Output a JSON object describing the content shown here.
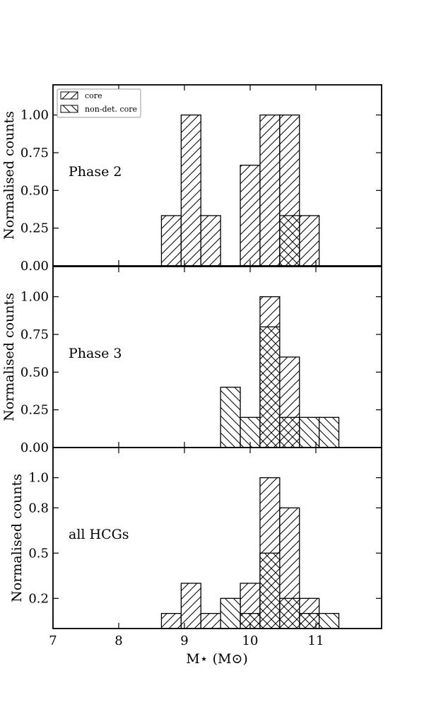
{
  "chart_data": {
    "type": "bar",
    "xlabel": "M⋆ (M⊙)",
    "xlim": [
      7,
      12
    ],
    "xticks": [
      "7",
      "8",
      "9",
      "10",
      "11"
    ],
    "bin_width": 0.3,
    "legend": {
      "placement": "top-left",
      "entries": [
        {
          "label": "core",
          "hatch": "diagonal-forward"
        },
        {
          "label": "non-det. core",
          "hatch": "diagonal-back"
        }
      ]
    },
    "panels": [
      {
        "label": "Phase 2",
        "ylabel": "Normalised counts",
        "ylim": [
          0,
          1.2
        ],
        "yticks": [
          {
            "value": 0.0,
            "label": "0.00"
          },
          {
            "value": 0.25,
            "label": "0.25"
          },
          {
            "value": 0.5,
            "label": "0.50"
          },
          {
            "value": 0.75,
            "label": "0.75"
          },
          {
            "value": 1.0,
            "label": "1.00"
          }
        ],
        "series": [
          {
            "name": "core",
            "bins": [
              {
                "x": 8.65,
                "value": 0.333
              },
              {
                "x": 8.95,
                "value": 1.0
              },
              {
                "x": 9.25,
                "value": 0.333
              },
              {
                "x": 9.85,
                "value": 0.667
              },
              {
                "x": 10.15,
                "value": 1.0
              },
              {
                "x": 10.45,
                "value": 1.0
              },
              {
                "x": 10.75,
                "value": 0.333
              }
            ]
          },
          {
            "name": "non-det. core",
            "bins": [
              {
                "x": 10.45,
                "value": 0.333
              }
            ]
          }
        ]
      },
      {
        "label": "Phase 3",
        "ylabel": "Normalised counts",
        "ylim": [
          0,
          1.2
        ],
        "yticks": [
          {
            "value": 0.0,
            "label": "0.00"
          },
          {
            "value": 0.25,
            "label": "0.25"
          },
          {
            "value": 0.5,
            "label": "0.50"
          },
          {
            "value": 0.75,
            "label": "0.75"
          },
          {
            "value": 1.0,
            "label": "1.00"
          }
        ],
        "series": [
          {
            "name": "core",
            "bins": [
              {
                "x": 10.15,
                "value": 1.0
              },
              {
                "x": 10.45,
                "value": 0.6
              }
            ]
          },
          {
            "name": "non-det. core",
            "bins": [
              {
                "x": 9.55,
                "value": 0.4
              },
              {
                "x": 9.85,
                "value": 0.2
              },
              {
                "x": 10.15,
                "value": 0.8
              },
              {
                "x": 10.45,
                "value": 0.2
              },
              {
                "x": 10.75,
                "value": 0.2
              },
              {
                "x": 11.05,
                "value": 0.2
              }
            ]
          }
        ]
      },
      {
        "label": "all HCGs",
        "ylabel": "Normalised counts",
        "ylim": [
          0,
          1.2
        ],
        "yticks": [
          {
            "value": 0.2,
            "label": "0.2"
          },
          {
            "value": 0.5,
            "label": "0.5"
          },
          {
            "value": 0.8,
            "label": "0.8"
          },
          {
            "value": 1.0,
            "label": "1.0"
          }
        ],
        "series": [
          {
            "name": "core",
            "bins": [
              {
                "x": 8.65,
                "value": 0.1
              },
              {
                "x": 8.95,
                "value": 0.3
              },
              {
                "x": 9.25,
                "value": 0.1
              },
              {
                "x": 9.85,
                "value": 0.3
              },
              {
                "x": 10.15,
                "value": 1.0
              },
              {
                "x": 10.45,
                "value": 0.8
              },
              {
                "x": 10.75,
                "value": 0.2
              }
            ]
          },
          {
            "name": "non-det. core",
            "bins": [
              {
                "x": 9.55,
                "value": 0.2
              },
              {
                "x": 9.85,
                "value": 0.1
              },
              {
                "x": 10.15,
                "value": 0.5
              },
              {
                "x": 10.45,
                "value": 0.2
              },
              {
                "x": 10.75,
                "value": 0.1
              },
              {
                "x": 11.05,
                "value": 0.1
              }
            ]
          }
        ]
      }
    ]
  }
}
